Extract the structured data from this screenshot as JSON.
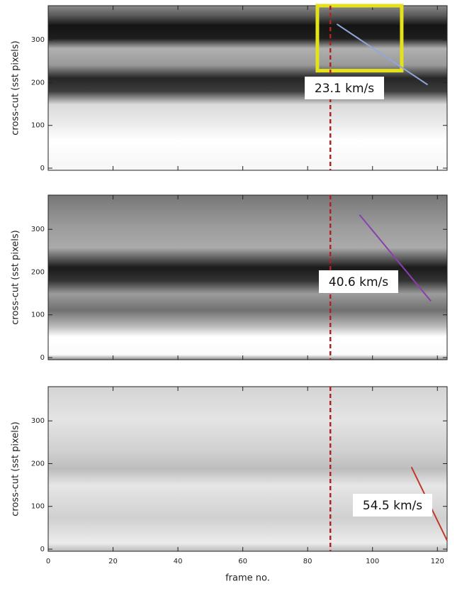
{
  "chart_data": [
    {
      "type": "line",
      "ylabel": "cross-cut (sst pixels)",
      "xlim": [
        0,
        123
      ],
      "xticks": [
        0,
        20,
        40,
        60,
        80,
        100,
        120
      ],
      "ylim": [
        -5,
        380
      ],
      "yticks": [
        0,
        100,
        200,
        300
      ],
      "series": [
        {
          "color": "#8fa8dc",
          "x": [
            89,
            117
          ],
          "values": [
            337,
            195
          ]
        }
      ],
      "annotation": "23.1 km/s",
      "vline": 87,
      "vline_color": "#b22222",
      "box": {
        "x": [
          83,
          109
        ],
        "y": [
          228,
          380
        ],
        "color": "#e6e21a"
      }
    },
    {
      "type": "line",
      "ylabel": "cross-cut (sst pixels)",
      "xlim": [
        0,
        123
      ],
      "xticks": [
        0,
        20,
        40,
        60,
        80,
        100,
        120
      ],
      "ylim": [
        -5,
        380
      ],
      "yticks": [
        0,
        100,
        200,
        300
      ],
      "series": [
        {
          "color": "#8a3fb0",
          "x": [
            96,
            118
          ],
          "values": [
            334,
            132
          ]
        }
      ],
      "annotation": "40.6 km/s",
      "vline": 87,
      "vline_color": "#b22222"
    },
    {
      "type": "line",
      "ylabel": "cross-cut (sst pixels)",
      "xlabel": "frame no.",
      "xlim": [
        0,
        123
      ],
      "xticks": [
        0,
        20,
        40,
        60,
        80,
        100,
        120
      ],
      "ylim": [
        -5,
        380
      ],
      "yticks": [
        0,
        100,
        200,
        300
      ],
      "series": [
        {
          "color": "#c0392b",
          "x": [
            112,
            123
          ],
          "values": [
            192,
            20
          ]
        }
      ],
      "annotation": "54.5 km/s",
      "vline": 87,
      "vline_color": "#b22222"
    }
  ]
}
